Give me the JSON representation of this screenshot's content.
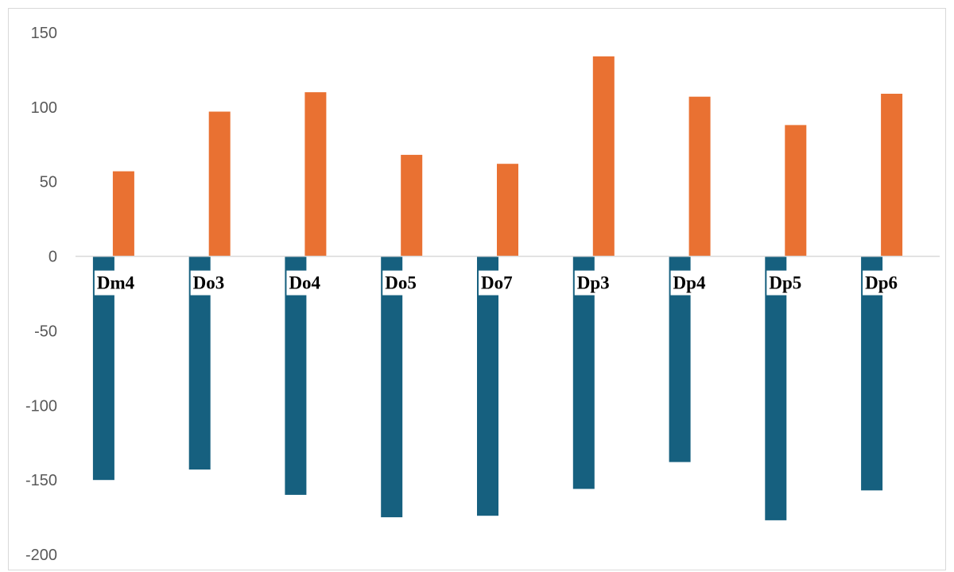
{
  "chart_data": {
    "type": "bar",
    "title": "",
    "xlabel": "",
    "ylabel": "",
    "categories": [
      "Dm4",
      "Do3",
      "Do4",
      "Do5",
      "Do7",
      "Dp3",
      "Dp4",
      "Dp5",
      "Dp6"
    ],
    "series": [
      {
        "color": "#16607f",
        "values": [
          -150,
          -143,
          -160,
          -175,
          -174,
          -156,
          -138,
          -177,
          -157
        ]
      },
      {
        "color": "#e97132",
        "values": [
          57,
          97,
          110,
          68,
          62,
          134,
          107,
          88,
          109
        ]
      }
    ],
    "ylim": [
      -200,
      150
    ],
    "yticks": [
      "150",
      "100",
      "50",
      "0",
      "-50",
      "-100",
      "-150",
      "-200"
    ],
    "grid": false,
    "legend": "none",
    "axis_line_color": "#d9d9d9",
    "tick_label_color": "#595959"
  }
}
